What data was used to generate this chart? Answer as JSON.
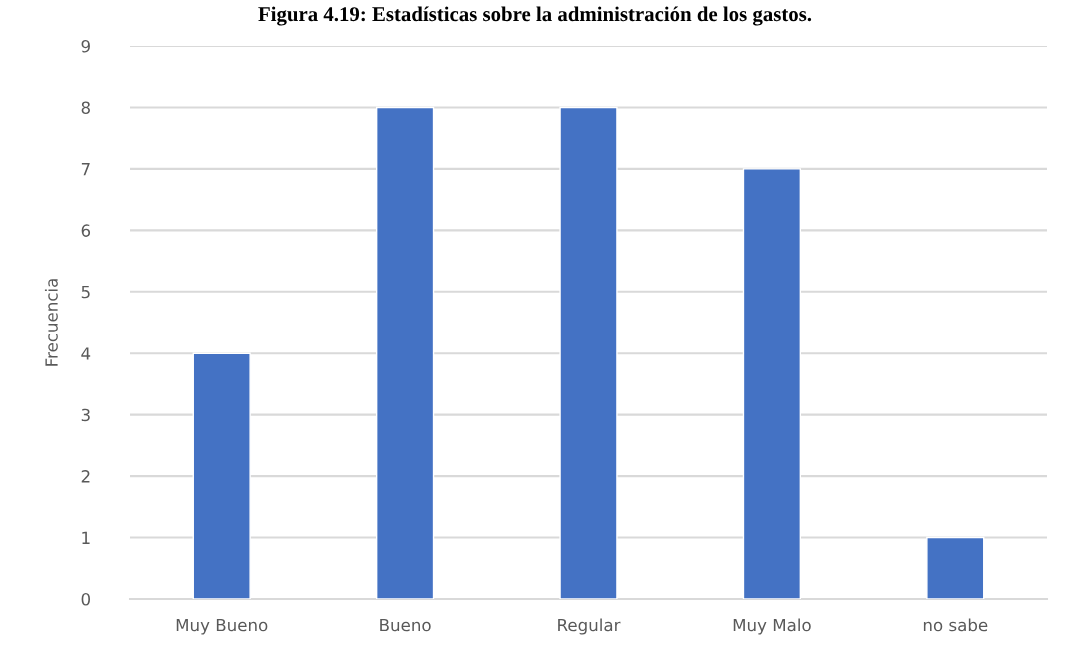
{
  "chart_data": {
    "type": "bar",
    "title": "Figura 4.19: Estadísticas sobre la administración de los gastos.",
    "ylabel": "Frecuencia",
    "categories": [
      "Muy Bueno",
      "Bueno",
      "Regular",
      "Muy Malo",
      "no sabe"
    ],
    "values": [
      4,
      8,
      8,
      7,
      1
    ],
    "color": "#4472c4",
    "ylim": [
      0,
      9
    ],
    "yticks": [
      0,
      1,
      2,
      3,
      4,
      5,
      6,
      7,
      8,
      9
    ],
    "grid": "y",
    "legend": false
  }
}
